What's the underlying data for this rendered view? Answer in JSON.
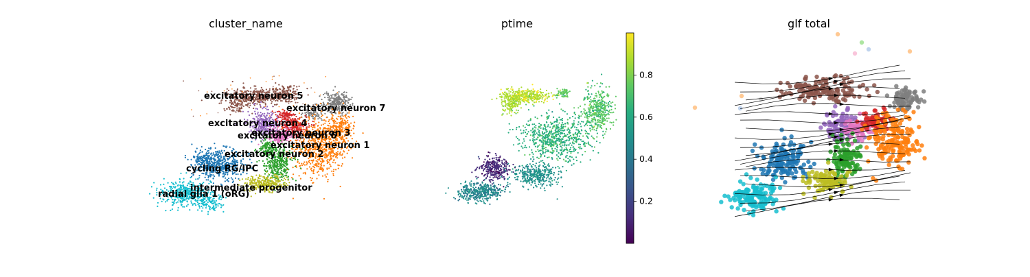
{
  "panels": [
    {
      "title": "cluster_name"
    },
    {
      "title": "ptime"
    },
    {
      "title": "glf total"
    }
  ],
  "colors": {
    "cycling RG/IPC": "#1f77b4",
    "excitatory neuron 1": "#ff7f0e",
    "excitatory neuron 2": "#2ca02c",
    "excitatory neuron 3": "#d62728",
    "excitatory neuron 4": "#9467bd",
    "excitatory neuron 5": "#8c564b",
    "excitatory neuron 6": "#e377c2",
    "excitatory neuron 7": "#7f7f7f",
    "intermediate progenitor": "#bcbd22",
    "radial glia 1 (oRG)": "#17becf"
  },
  "chart_data": [
    {
      "type": "scatter",
      "title": "cluster_name",
      "xlabel": "",
      "ylabel": "",
      "grid": false,
      "legend": "on data",
      "series": [
        {
          "name": "excitatory neuron 5"
        },
        {
          "name": "excitatory neuron 7"
        },
        {
          "name": "excitatory neuron 4"
        },
        {
          "name": "excitatory neuron 3"
        },
        {
          "name": "excitatory neuron 6"
        },
        {
          "name": "excitatory neuron 1"
        },
        {
          "name": "excitatory neuron 2"
        },
        {
          "name": "cycling RG/IPC"
        },
        {
          "name": "intermediate progenitor"
        },
        {
          "name": "radial glia 1 (oRG)"
        }
      ]
    },
    {
      "type": "scatter",
      "title": "ptime",
      "colorbar": {
        "colormap": "viridis",
        "range": [
          0,
          1
        ],
        "ticks": [
          "0.2",
          "0.4",
          "0.6",
          "0.8"
        ],
        "tick_values": [
          0.2,
          0.4,
          0.6,
          0.8
        ]
      }
    },
    {
      "type": "scatter",
      "title": "glf total",
      "overlay": "velocity streamlines with arrowheads"
    }
  ]
}
